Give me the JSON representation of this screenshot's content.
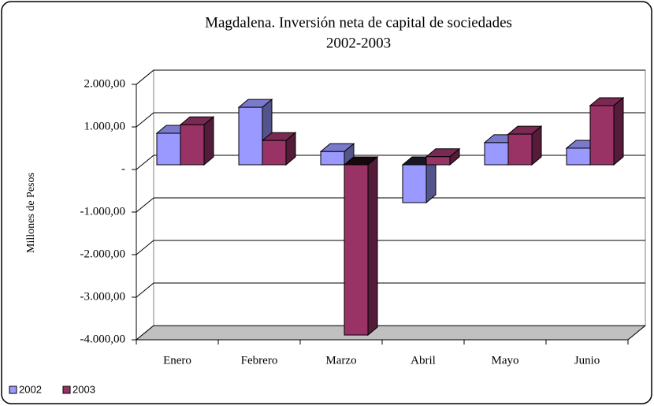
{
  "chart_data": {
    "type": "bar3d",
    "title": "Magdalena. Inversión neta de capital de sociedades",
    "subtitle": "2002-2003",
    "y_label": "Millones de Pesos",
    "categories": [
      "Enero",
      "Febrero",
      "Marzo",
      "Abril",
      "Mayo",
      "Junio"
    ],
    "series": [
      {
        "name": "2002",
        "color": "#9999ff",
        "values": [
          740,
          1350,
          310,
          -890,
          520,
          390
        ]
      },
      {
        "name": "2003",
        "color": "#993366",
        "values": [
          940,
          570,
          -4000,
          190,
          720,
          1390
        ]
      }
    ],
    "ylim": [
      -4000,
      2000
    ],
    "yticks": [
      {
        "value": -4000,
        "label": "-4.000,00"
      },
      {
        "value": -3000,
        "label": "-3.000,00"
      },
      {
        "value": -2000,
        "label": "-2.000,00"
      },
      {
        "value": -1000,
        "label": "-1.000,00"
      },
      {
        "value": 0,
        "label": "-"
      },
      {
        "value": 1000,
        "label": "1.000,00"
      },
      {
        "value": 2000,
        "label": "2.000,00"
      }
    ],
    "grid": true,
    "legend": "bottom-left"
  }
}
